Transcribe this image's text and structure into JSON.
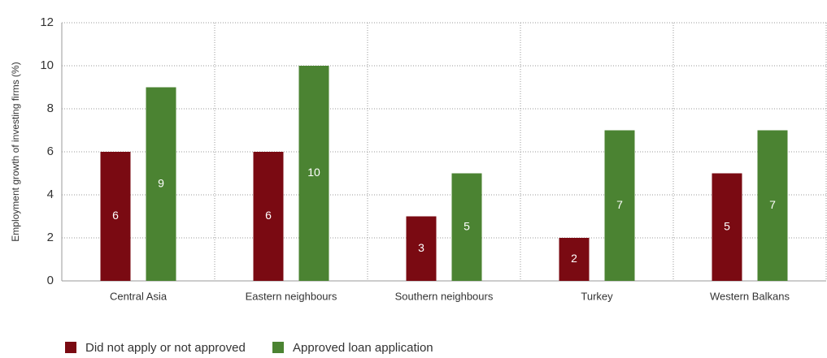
{
  "chart_data": {
    "type": "bar",
    "y_label": "Employment growth of investing firms (%)",
    "categories": [
      "Central Asia",
      "Eastern neighbours",
      "Southern neighbours",
      "Turkey",
      "Western Balkans"
    ],
    "series": [
      {
        "name": "Did not apply or not approved",
        "color": "#7a0a12",
        "values": [
          6,
          6,
          3,
          2,
          5
        ]
      },
      {
        "name": "Approved loan application",
        "color": "#4b8332",
        "values": [
          9,
          10,
          5,
          7,
          7
        ]
      }
    ],
    "ylim": [
      0,
      12
    ],
    "yticks": [
      0,
      2,
      4,
      6,
      8,
      10,
      12
    ],
    "grid": true
  }
}
